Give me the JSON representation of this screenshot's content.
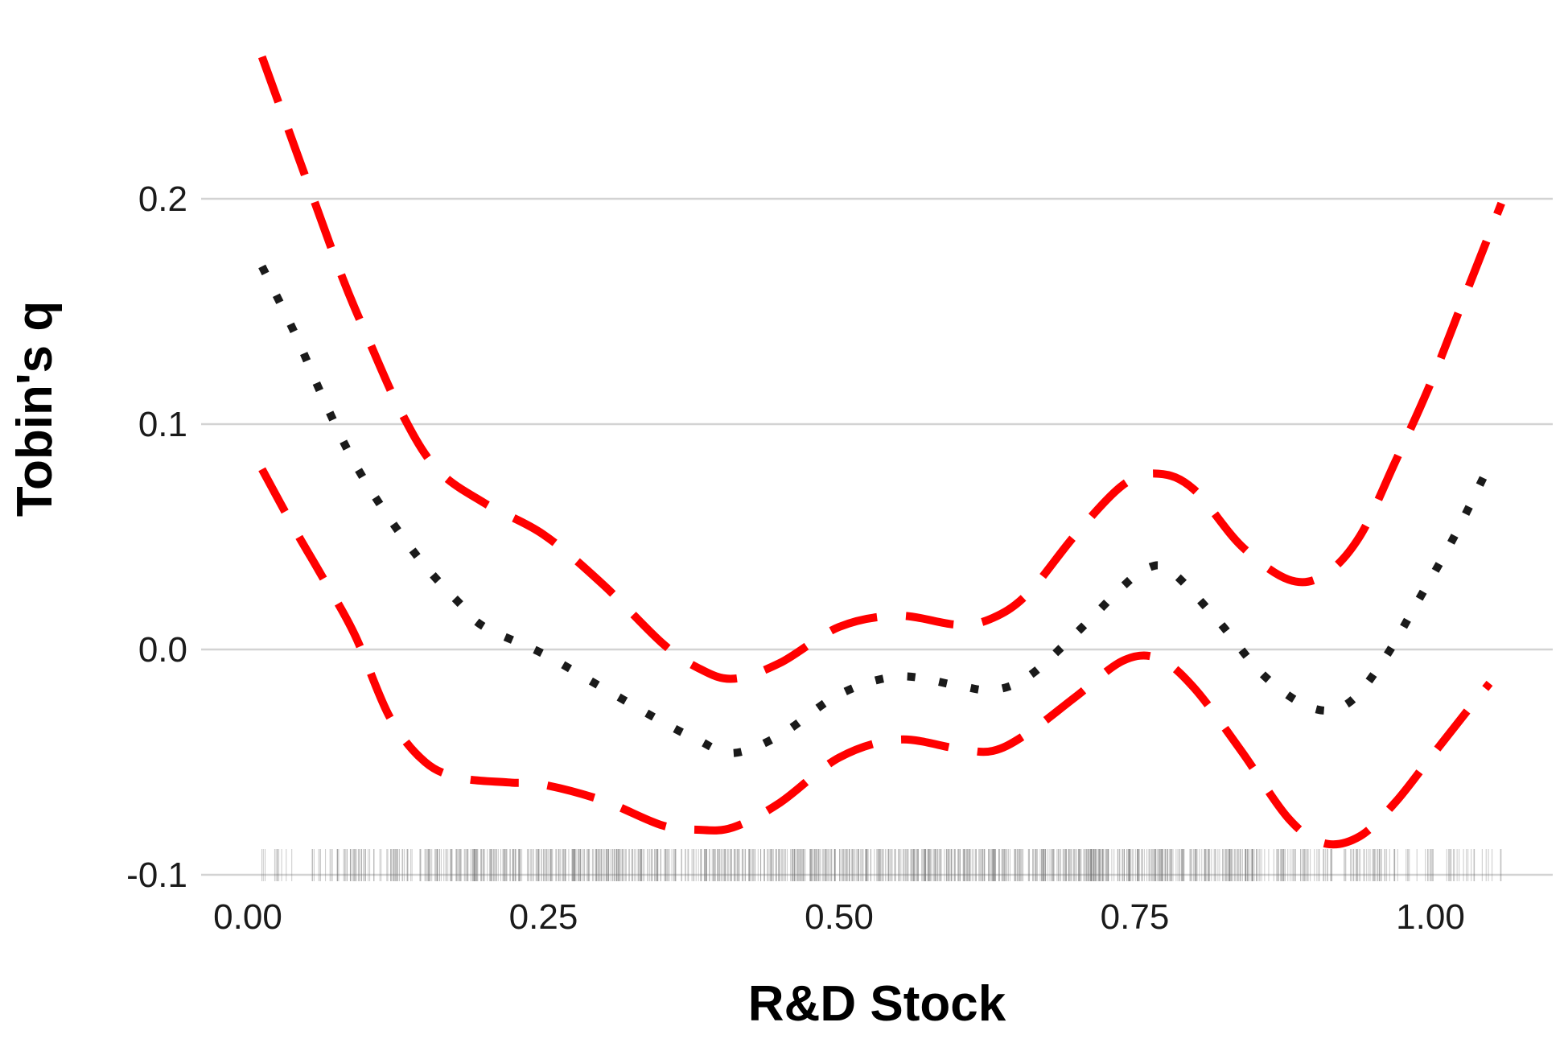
{
  "chart_data": {
    "type": "line",
    "title": "",
    "xlabel": "R&D Stock",
    "ylabel": "Tobin's q",
    "xlim": [
      -0.05,
      1.1
    ],
    "ylim": [
      -0.1,
      0.2
    ],
    "x_ticks": [
      "0.00",
      "0.25",
      "0.50",
      "0.75",
      "1.00"
    ],
    "x_tick_values": [
      0.0,
      0.25,
      0.5,
      0.75,
      1.0
    ],
    "y_ticks": [
      "-0.1",
      "0.0",
      "0.1",
      "0.2"
    ],
    "y_tick_values": [
      -0.1,
      0.0,
      0.1,
      0.2
    ],
    "grid": "horizontal major",
    "legend": "none",
    "rug": {
      "axis": "x",
      "at_y": -0.1,
      "range": [
        0.01,
        1.06
      ],
      "color": "#666666"
    },
    "series": [
      {
        "role": "upper",
        "style": "dashed",
        "color": "#ff0000",
        "x": [
          0.012,
          0.05,
          0.08,
          0.1,
          0.13,
          0.16,
          0.2,
          0.25,
          0.3,
          0.35,
          0.38,
          0.41,
          0.45,
          0.5,
          0.55,
          0.6,
          0.63,
          0.66,
          0.7,
          0.74,
          0.77,
          0.8,
          0.84,
          0.88,
          0.91,
          0.94,
          0.97,
          1.0,
          1.03,
          1.06
        ],
        "y": [
          0.263,
          0.208,
          0.165,
          0.14,
          0.105,
          0.08,
          0.065,
          0.051,
          0.029,
          0.003,
          -0.008,
          -0.013,
          -0.006,
          0.01,
          0.015,
          0.011,
          0.014,
          0.025,
          0.051,
          0.073,
          0.078,
          0.071,
          0.046,
          0.031,
          0.033,
          0.05,
          0.083,
          0.118,
          0.158,
          0.198
        ]
      },
      {
        "role": "estimate",
        "style": "dotted",
        "color": "#1a1a1a",
        "x": [
          0.012,
          0.04,
          0.065,
          0.09,
          0.12,
          0.15,
          0.18,
          0.2,
          0.25,
          0.3,
          0.35,
          0.38,
          0.41,
          0.45,
          0.5,
          0.55,
          0.6,
          0.63,
          0.66,
          0.7,
          0.74,
          0.76,
          0.78,
          0.82,
          0.86,
          0.9,
          0.93,
          0.96,
          0.99,
          1.02,
          1.05
        ],
        "y": [
          0.17,
          0.14,
          0.11,
          0.083,
          0.058,
          0.037,
          0.02,
          0.01,
          -0.002,
          -0.017,
          -0.032,
          -0.04,
          -0.046,
          -0.038,
          -0.02,
          -0.012,
          -0.016,
          -0.018,
          -0.012,
          0.007,
          0.028,
          0.036,
          0.035,
          0.013,
          -0.012,
          -0.026,
          -0.024,
          -0.005,
          0.022,
          0.05,
          0.082
        ]
      },
      {
        "role": "lower",
        "style": "dashed",
        "color": "#ff0000",
        "x": [
          0.012,
          0.04,
          0.06,
          0.09,
          0.12,
          0.15,
          0.18,
          0.22,
          0.25,
          0.3,
          0.35,
          0.38,
          0.41,
          0.45,
          0.5,
          0.55,
          0.6,
          0.63,
          0.66,
          0.7,
          0.74,
          0.77,
          0.8,
          0.84,
          0.88,
          0.91,
          0.94,
          0.97,
          1.0,
          1.03,
          1.05
        ],
        "y": [
          0.08,
          0.053,
          0.035,
          0.007,
          -0.03,
          -0.05,
          -0.057,
          -0.059,
          -0.06,
          -0.067,
          -0.078,
          -0.08,
          -0.079,
          -0.068,
          -0.048,
          -0.04,
          -0.044,
          -0.045,
          -0.037,
          -0.021,
          -0.005,
          -0.004,
          -0.017,
          -0.045,
          -0.075,
          -0.086,
          -0.083,
          -0.068,
          -0.048,
          -0.028,
          -0.015
        ]
      }
    ]
  }
}
